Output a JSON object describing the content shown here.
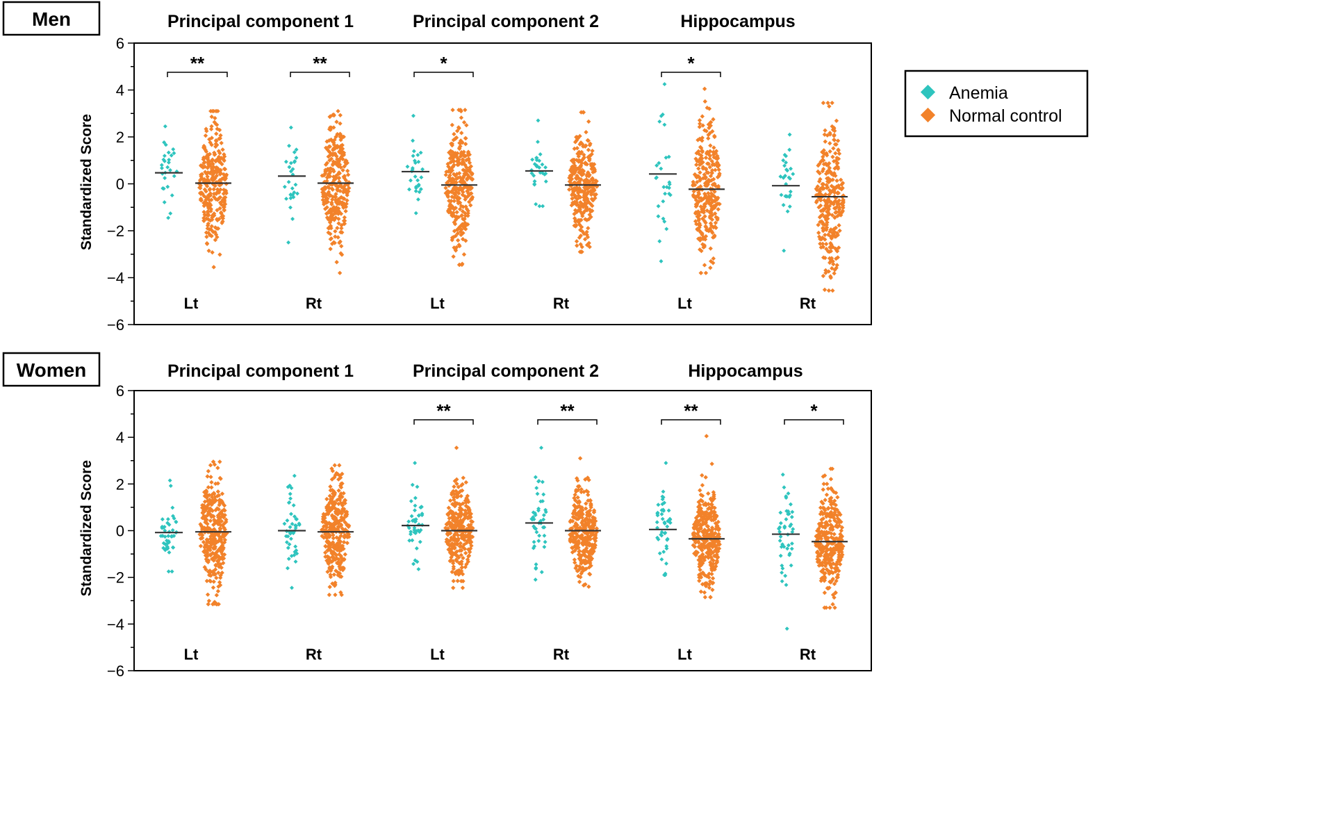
{
  "legend": {
    "entries": [
      {
        "label": "Anemia",
        "color": "#2ec4be"
      },
      {
        "label": "Normal control",
        "color": "#f2822a"
      }
    ]
  },
  "chart_data": [
    {
      "type": "scatter",
      "panel_label": "Men",
      "ylabel": "Standardized Score",
      "ylim": [
        -6,
        6
      ],
      "yticks": [
        -6,
        -4,
        -2,
        0,
        2,
        4,
        6
      ],
      "groups": [
        {
          "title": "Principal component 1",
          "sides": [
            {
              "side": "Lt",
              "significance": "**",
              "anemia": {
                "mean": 0.47,
                "min": -1.45,
                "max": 2.45,
                "n": 28
              },
              "control": {
                "mean": 0.03,
                "min": -3.55,
                "max": 3.1,
                "n": 300
              }
            },
            {
              "side": "Rt",
              "significance": "**",
              "anemia": {
                "mean": 0.33,
                "min": -2.5,
                "max": 2.4,
                "n": 28
              },
              "control": {
                "mean": 0.03,
                "min": -3.8,
                "max": 3.1,
                "n": 300
              }
            }
          ]
        },
        {
          "title": "Principal component 2",
          "sides": [
            {
              "side": "Lt",
              "significance": "*",
              "anemia": {
                "mean": 0.52,
                "min": -1.25,
                "max": 2.9,
                "n": 28
              },
              "control": {
                "mean": -0.05,
                "min": -3.45,
                "max": 3.15,
                "n": 300
              }
            },
            {
              "side": "Rt",
              "significance": "",
              "anemia": {
                "mean": 0.55,
                "min": -0.95,
                "max": 2.7,
                "n": 28
              },
              "control": {
                "mean": -0.05,
                "min": -2.9,
                "max": 3.05,
                "n": 300
              }
            }
          ]
        },
        {
          "title": "Hippocampus",
          "sides": [
            {
              "side": "Lt",
              "significance": "*",
              "anemia": {
                "mean": 0.42,
                "min": -3.3,
                "max": 4.25,
                "n": 28
              },
              "control": {
                "mean": -0.23,
                "min": -3.8,
                "max": 4.05,
                "n": 300
              }
            },
            {
              "side": "Rt",
              "significance": "",
              "anemia": {
                "mean": -0.08,
                "min": -2.85,
                "max": 2.1,
                "n": 28
              },
              "control": {
                "mean": -0.55,
                "min": -4.55,
                "max": 3.45,
                "n": 300
              }
            }
          ]
        }
      ]
    },
    {
      "type": "scatter",
      "panel_label": "Women",
      "ylabel": "Standardized Score",
      "ylim": [
        -6,
        6
      ],
      "yticks": [
        -6,
        -4,
        -2,
        0,
        2,
        4,
        6
      ],
      "groups": [
        {
          "title": "Principal component 1",
          "sides": [
            {
              "side": "Lt",
              "significance": "",
              "anemia": {
                "mean": -0.08,
                "min": -1.75,
                "max": 2.15,
                "n": 45
              },
              "control": {
                "mean": -0.05,
                "min": -3.15,
                "max": 2.95,
                "n": 320
              }
            },
            {
              "side": "Rt",
              "significance": "",
              "anemia": {
                "mean": 0.0,
                "min": -2.45,
                "max": 2.35,
                "n": 45
              },
              "control": {
                "mean": -0.05,
                "min": -2.75,
                "max": 2.8,
                "n": 320
              }
            }
          ]
        },
        {
          "title": "Principal component 2",
          "sides": [
            {
              "side": "Lt",
              "significance": "**",
              "anemia": {
                "mean": 0.22,
                "min": -1.65,
                "max": 2.9,
                "n": 45
              },
              "control": {
                "mean": 0.0,
                "min": -2.45,
                "max": 3.55,
                "n": 320
              }
            },
            {
              "side": "Rt",
              "significance": "**",
              "anemia": {
                "mean": 0.33,
                "min": -2.1,
                "max": 3.55,
                "n": 45
              },
              "control": {
                "mean": 0.0,
                "min": -2.4,
                "max": 3.1,
                "n": 320
              }
            }
          ]
        },
        {
          "title": "Hippocampus",
          "sides": [
            {
              "side": "Lt",
              "significance": "**",
              "anemia": {
                "mean": 0.05,
                "min": -1.9,
                "max": 2.9,
                "n": 45
              },
              "control": {
                "mean": -0.35,
                "min": -2.85,
                "max": 4.05,
                "n": 320
              }
            },
            {
              "side": "Rt",
              "significance": "*",
              "anemia": {
                "mean": -0.15,
                "min": -4.2,
                "max": 2.4,
                "n": 45
              },
              "control": {
                "mean": -0.47,
                "min": -3.3,
                "max": 2.65,
                "n": 320
              }
            }
          ]
        }
      ]
    }
  ]
}
